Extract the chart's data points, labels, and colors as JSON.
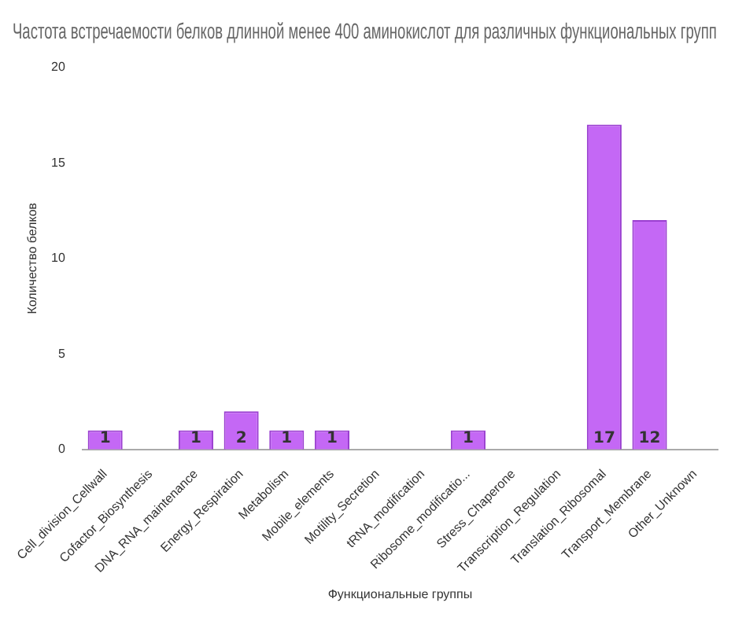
{
  "chart_data": {
    "type": "bar",
    "title": "Частота встречаемости белков длинной менее 400 аминокислот для различных функциональных групп",
    "xlabel": "Функциональные группы",
    "ylabel": "Количество белков",
    "categories": [
      "Cell_division_Cellwall",
      "Cofactor_Biosynthesis",
      "DNA_RNA_maintenance",
      "Energy_Respiration",
      "Metabolism",
      "Mobile_elements",
      "Motility_Secretion",
      "tRNA_modification",
      "Ribosome_modificatio...",
      "Stress_Chaperone",
      "Transcription_Regulation",
      "Translation_Ribosomal",
      "Transport_Membrane",
      "Other_Unknown"
    ],
    "values": [
      1,
      0,
      1,
      2,
      1,
      1,
      0,
      0,
      1,
      0,
      0,
      17,
      12,
      0
    ],
    "value_labels": [
      "1",
      null,
      "1",
      "2",
      "1",
      "1",
      null,
      null,
      "1",
      null,
      null,
      "17",
      "12",
      null
    ],
    "color": "#c468f5",
    "ylim": [
      0,
      20
    ],
    "yticks": [
      0,
      5,
      10,
      15,
      20
    ],
    "grid": false,
    "legend": false
  }
}
